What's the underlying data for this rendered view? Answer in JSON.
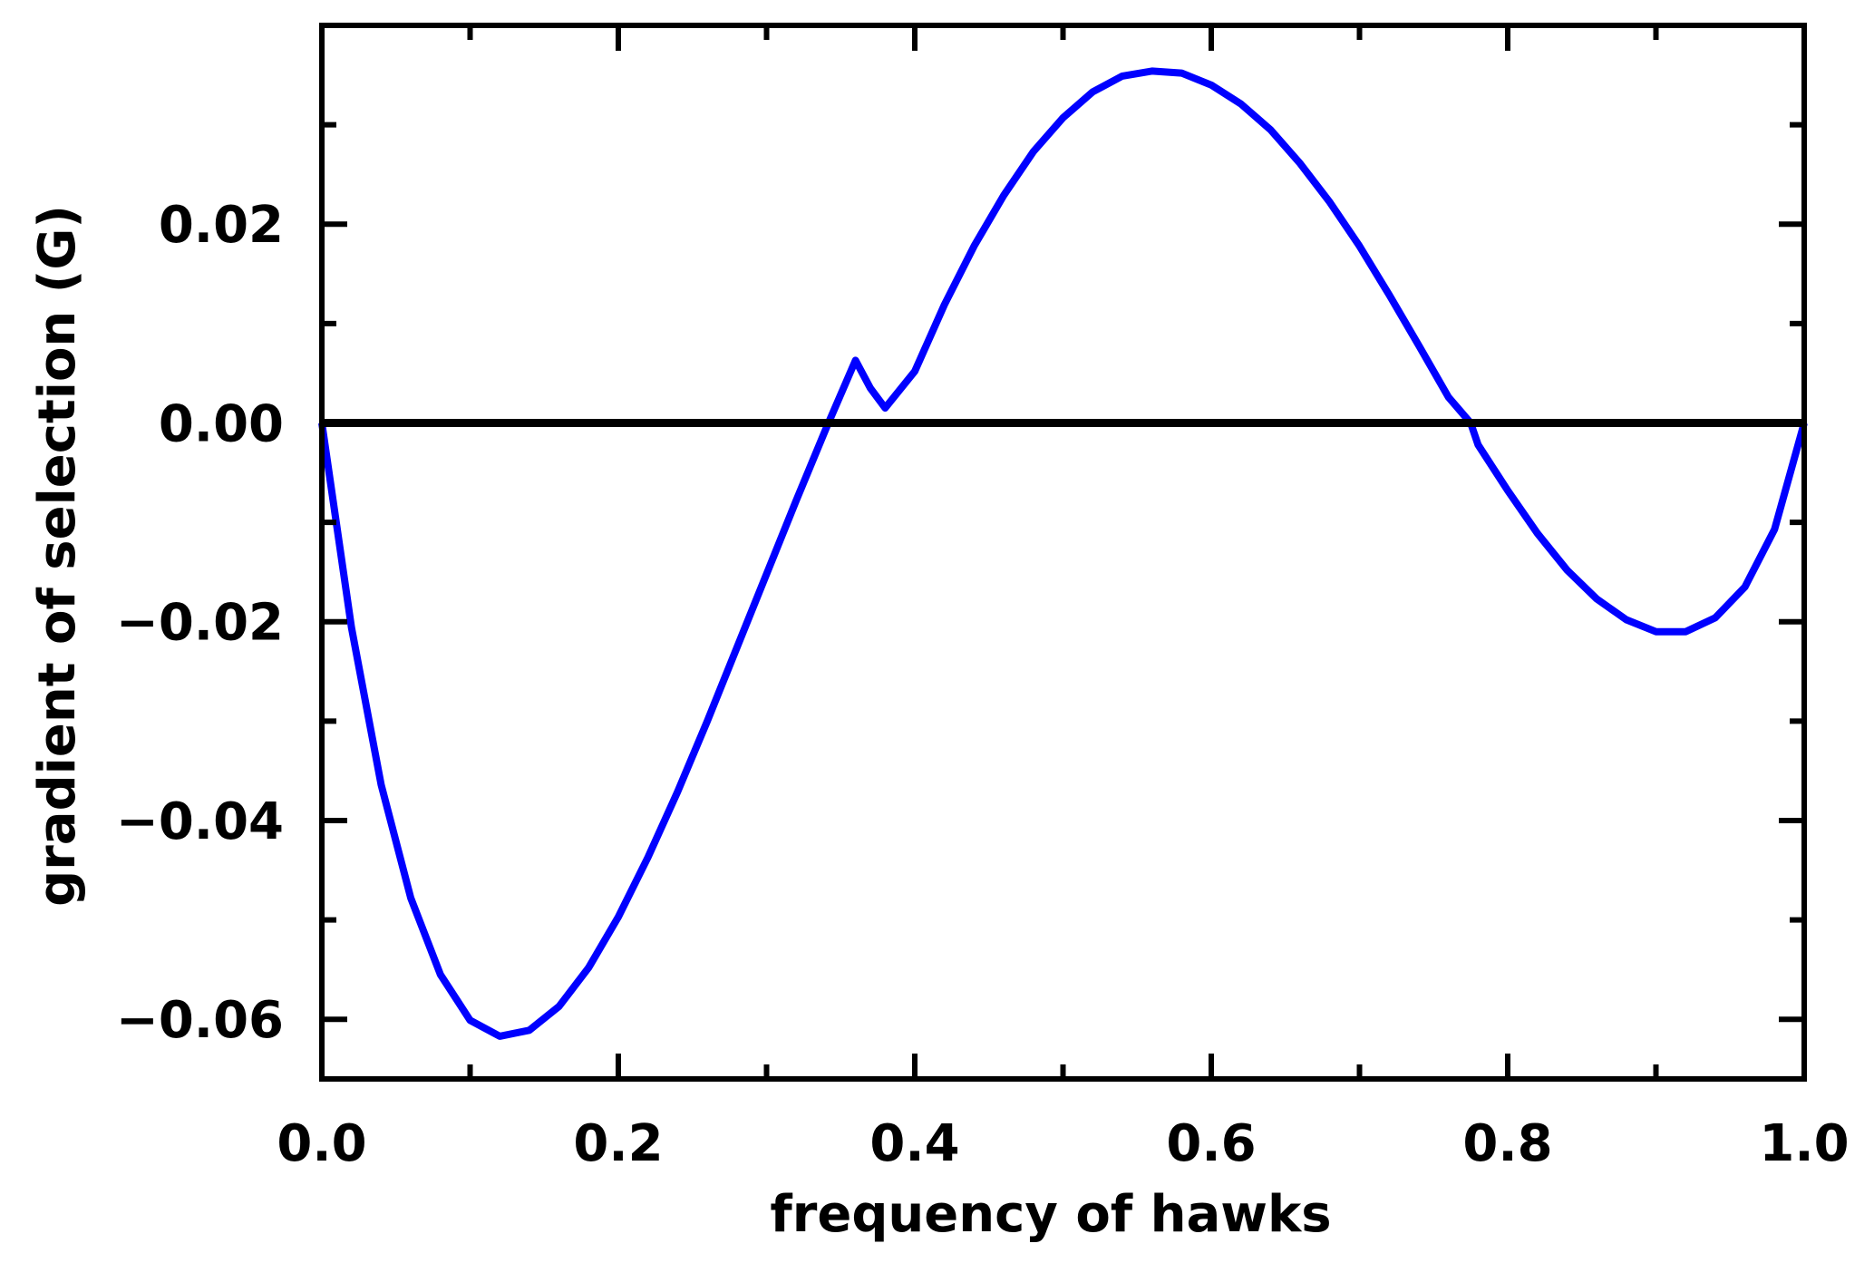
{
  "chart_data": {
    "type": "line",
    "title": "",
    "xlabel": "frequency of hawks",
    "ylabel": "gradient of selection (G)",
    "xlim": [
      0.0,
      1.0
    ],
    "ylim": [
      -0.066,
      0.04
    ],
    "x_ticks": [
      0.0,
      0.2,
      0.4,
      0.6,
      0.8,
      1.0
    ],
    "x_tick_labels": [
      "0.0",
      "0.2",
      "0.4",
      "0.6",
      "0.8",
      "1.0"
    ],
    "y_ticks": [
      -0.06,
      -0.04,
      -0.02,
      0.0,
      0.02
    ],
    "y_tick_labels": [
      "−0.06",
      "−0.04",
      "−0.02",
      "0.00",
      "0.02"
    ],
    "grid": false,
    "legend": "none",
    "series": [
      {
        "color": "#0000ff",
        "x": [
          0.0,
          0.02,
          0.04,
          0.06,
          0.08,
          0.1,
          0.12,
          0.14,
          0.16,
          0.18,
          0.2,
          0.22,
          0.24,
          0.26,
          0.28,
          0.3,
          0.32,
          0.34,
          0.36,
          0.37,
          0.38,
          0.4,
          0.42,
          0.44,
          0.46,
          0.48,
          0.5,
          0.52,
          0.54,
          0.56,
          0.58,
          0.6,
          0.62,
          0.64,
          0.66,
          0.68,
          0.7,
          0.72,
          0.74,
          0.76,
          0.775,
          0.78,
          0.8,
          0.82,
          0.84,
          0.86,
          0.88,
          0.9,
          0.92,
          0.94,
          0.96,
          0.98,
          1.0
        ],
        "y": [
          0.0,
          -0.0206,
          -0.0364,
          -0.0478,
          -0.0555,
          -0.0601,
          -0.0617,
          -0.0611,
          -0.0587,
          -0.0548,
          -0.0497,
          -0.0437,
          -0.0371,
          -0.03,
          -0.0226,
          -0.0152,
          -0.0078,
          -0.0006,
          0.0063,
          0.0035,
          0.0015,
          0.0052,
          0.0119,
          0.0178,
          0.0229,
          0.0273,
          0.0307,
          0.0333,
          0.0349,
          0.0354,
          0.0352,
          0.034,
          0.0321,
          0.0295,
          0.0261,
          0.0222,
          0.0178,
          0.0129,
          0.0078,
          0.0026,
          0.0,
          -0.0022,
          -0.0068,
          -0.0111,
          -0.0148,
          -0.0177,
          -0.0198,
          -0.021,
          -0.021,
          -0.0196,
          -0.0165,
          -0.0107,
          0.0
        ]
      },
      {
        "color": "#000000",
        "x": [
          0.0,
          1.0
        ],
        "y": [
          0.0,
          0.0
        ]
      }
    ]
  }
}
